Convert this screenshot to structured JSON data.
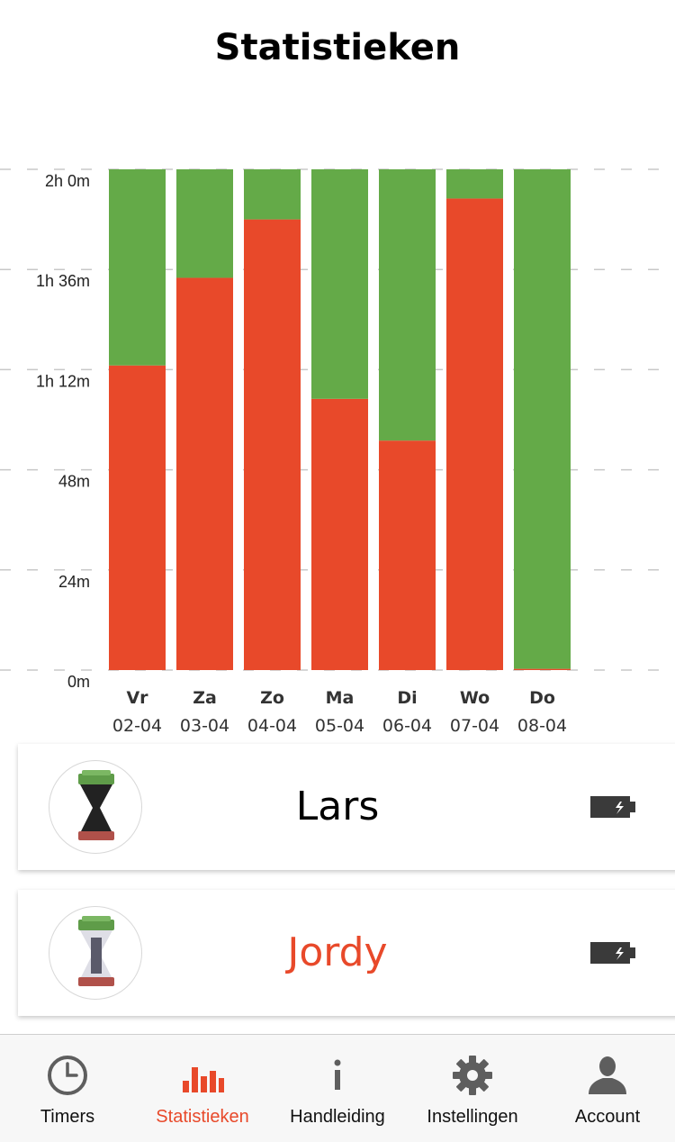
{
  "header": {
    "title": "Statistieken"
  },
  "colors": {
    "red": "#e8492a",
    "green": "#64aa48",
    "grid": "#c8c8c8",
    "active": "#e8492a",
    "icon_gray": "#5e5e5e"
  },
  "chart_data": {
    "type": "bar",
    "stacked": true,
    "unit": "minutes",
    "ylim": [
      0,
      120
    ],
    "y_ticks": [
      0,
      24,
      48,
      72,
      96,
      120
    ],
    "y_tick_labels": [
      "0m",
      "24m",
      "48m",
      "1h 12m",
      "1h 36m",
      "2h 0m"
    ],
    "grid": true,
    "categories": [
      {
        "day": "Vr",
        "date": "02-04"
      },
      {
        "day": "Za",
        "date": "03-04"
      },
      {
        "day": "Zo",
        "date": "04-04"
      },
      {
        "day": "Ma",
        "date": "05-04"
      },
      {
        "day": "Di",
        "date": "06-04"
      },
      {
        "day": "Wo",
        "date": "07-04"
      },
      {
        "day": "Do",
        "date": "08-04"
      }
    ],
    "series": [
      {
        "color": "#e8492a",
        "values": [
          73,
          94,
          108,
          65,
          55,
          113,
          0.3
        ]
      },
      {
        "color": "#64aa48",
        "values": [
          47,
          26,
          12,
          55,
          65,
          7,
          119.7
        ]
      }
    ]
  },
  "devices": [
    {
      "name": "Lars",
      "name_color": "#000000",
      "variant": "dark",
      "battery_icon": "battery-icon"
    },
    {
      "name": "Jordy",
      "name_color": "#e8492a",
      "variant": "light",
      "battery_icon": "battery-icon"
    }
  ],
  "tabs": [
    {
      "label": "Timers",
      "icon": "clock-icon",
      "active": false
    },
    {
      "label": "Statistieken",
      "icon": "bar-chart-icon",
      "active": true
    },
    {
      "label": "Handleiding",
      "icon": "info-icon",
      "active": false
    },
    {
      "label": "Instellingen",
      "icon": "gear-icon",
      "active": false
    },
    {
      "label": "Account",
      "icon": "user-icon",
      "active": false
    }
  ]
}
